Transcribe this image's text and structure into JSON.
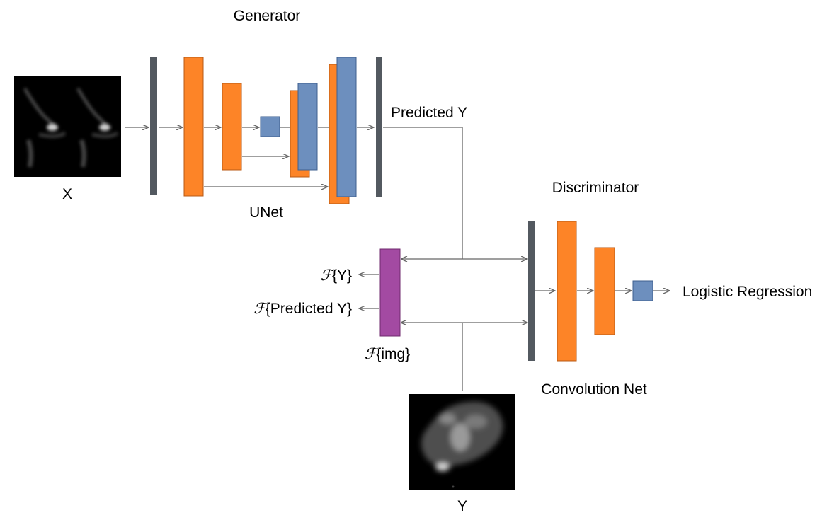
{
  "labels": {
    "generator": "Generator",
    "x": "X",
    "unet": "UNet",
    "predicted_y": "Predicted Y",
    "discriminator": "Discriminator",
    "logistic_regression": "Logistic Regression",
    "convolution_net": "Convolution Net",
    "y": "Y"
  },
  "fourier": {
    "symbol": "ℱ",
    "y_label": "{Y}",
    "predicted_y_label": "{Predicted Y}",
    "img_label": "{img}"
  },
  "colors": {
    "orange": "#FD8427",
    "blue": "#6D8FBE",
    "purple": "#A34AA2",
    "bar": "#535960",
    "connector": "#666666",
    "image_bg": "#000000"
  }
}
